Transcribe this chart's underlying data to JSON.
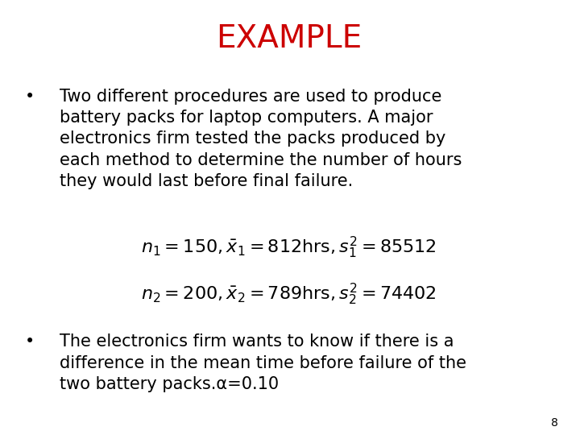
{
  "title": "EXAMPLE",
  "title_color": "#cc0000",
  "title_fontsize": 28,
  "background_color": "#ffffff",
  "bullet1": "Two different procedures are used to produce\nbattery packs for laptop computers. A major\nelectronics firm tested the packs produced by\neach method to determine the number of hours\nthey would last before final failure.",
  "eq1": "$n_1 = 150, \\bar{x}_1 = 812\\mathrm{hrs}, s_1^2 = 85512$",
  "eq2": "$n_2 = 200, \\bar{x}_2 = 789\\mathrm{hrs}, s_2^2 = 74402$",
  "bullet2": "The electronics firm wants to know if there is a\ndifference in the mean time before failure of the\ntwo battery packs.α=0.10",
  "page_number": "8",
  "text_color": "#000000",
  "body_fontsize": 15,
  "eq_fontsize": 16
}
